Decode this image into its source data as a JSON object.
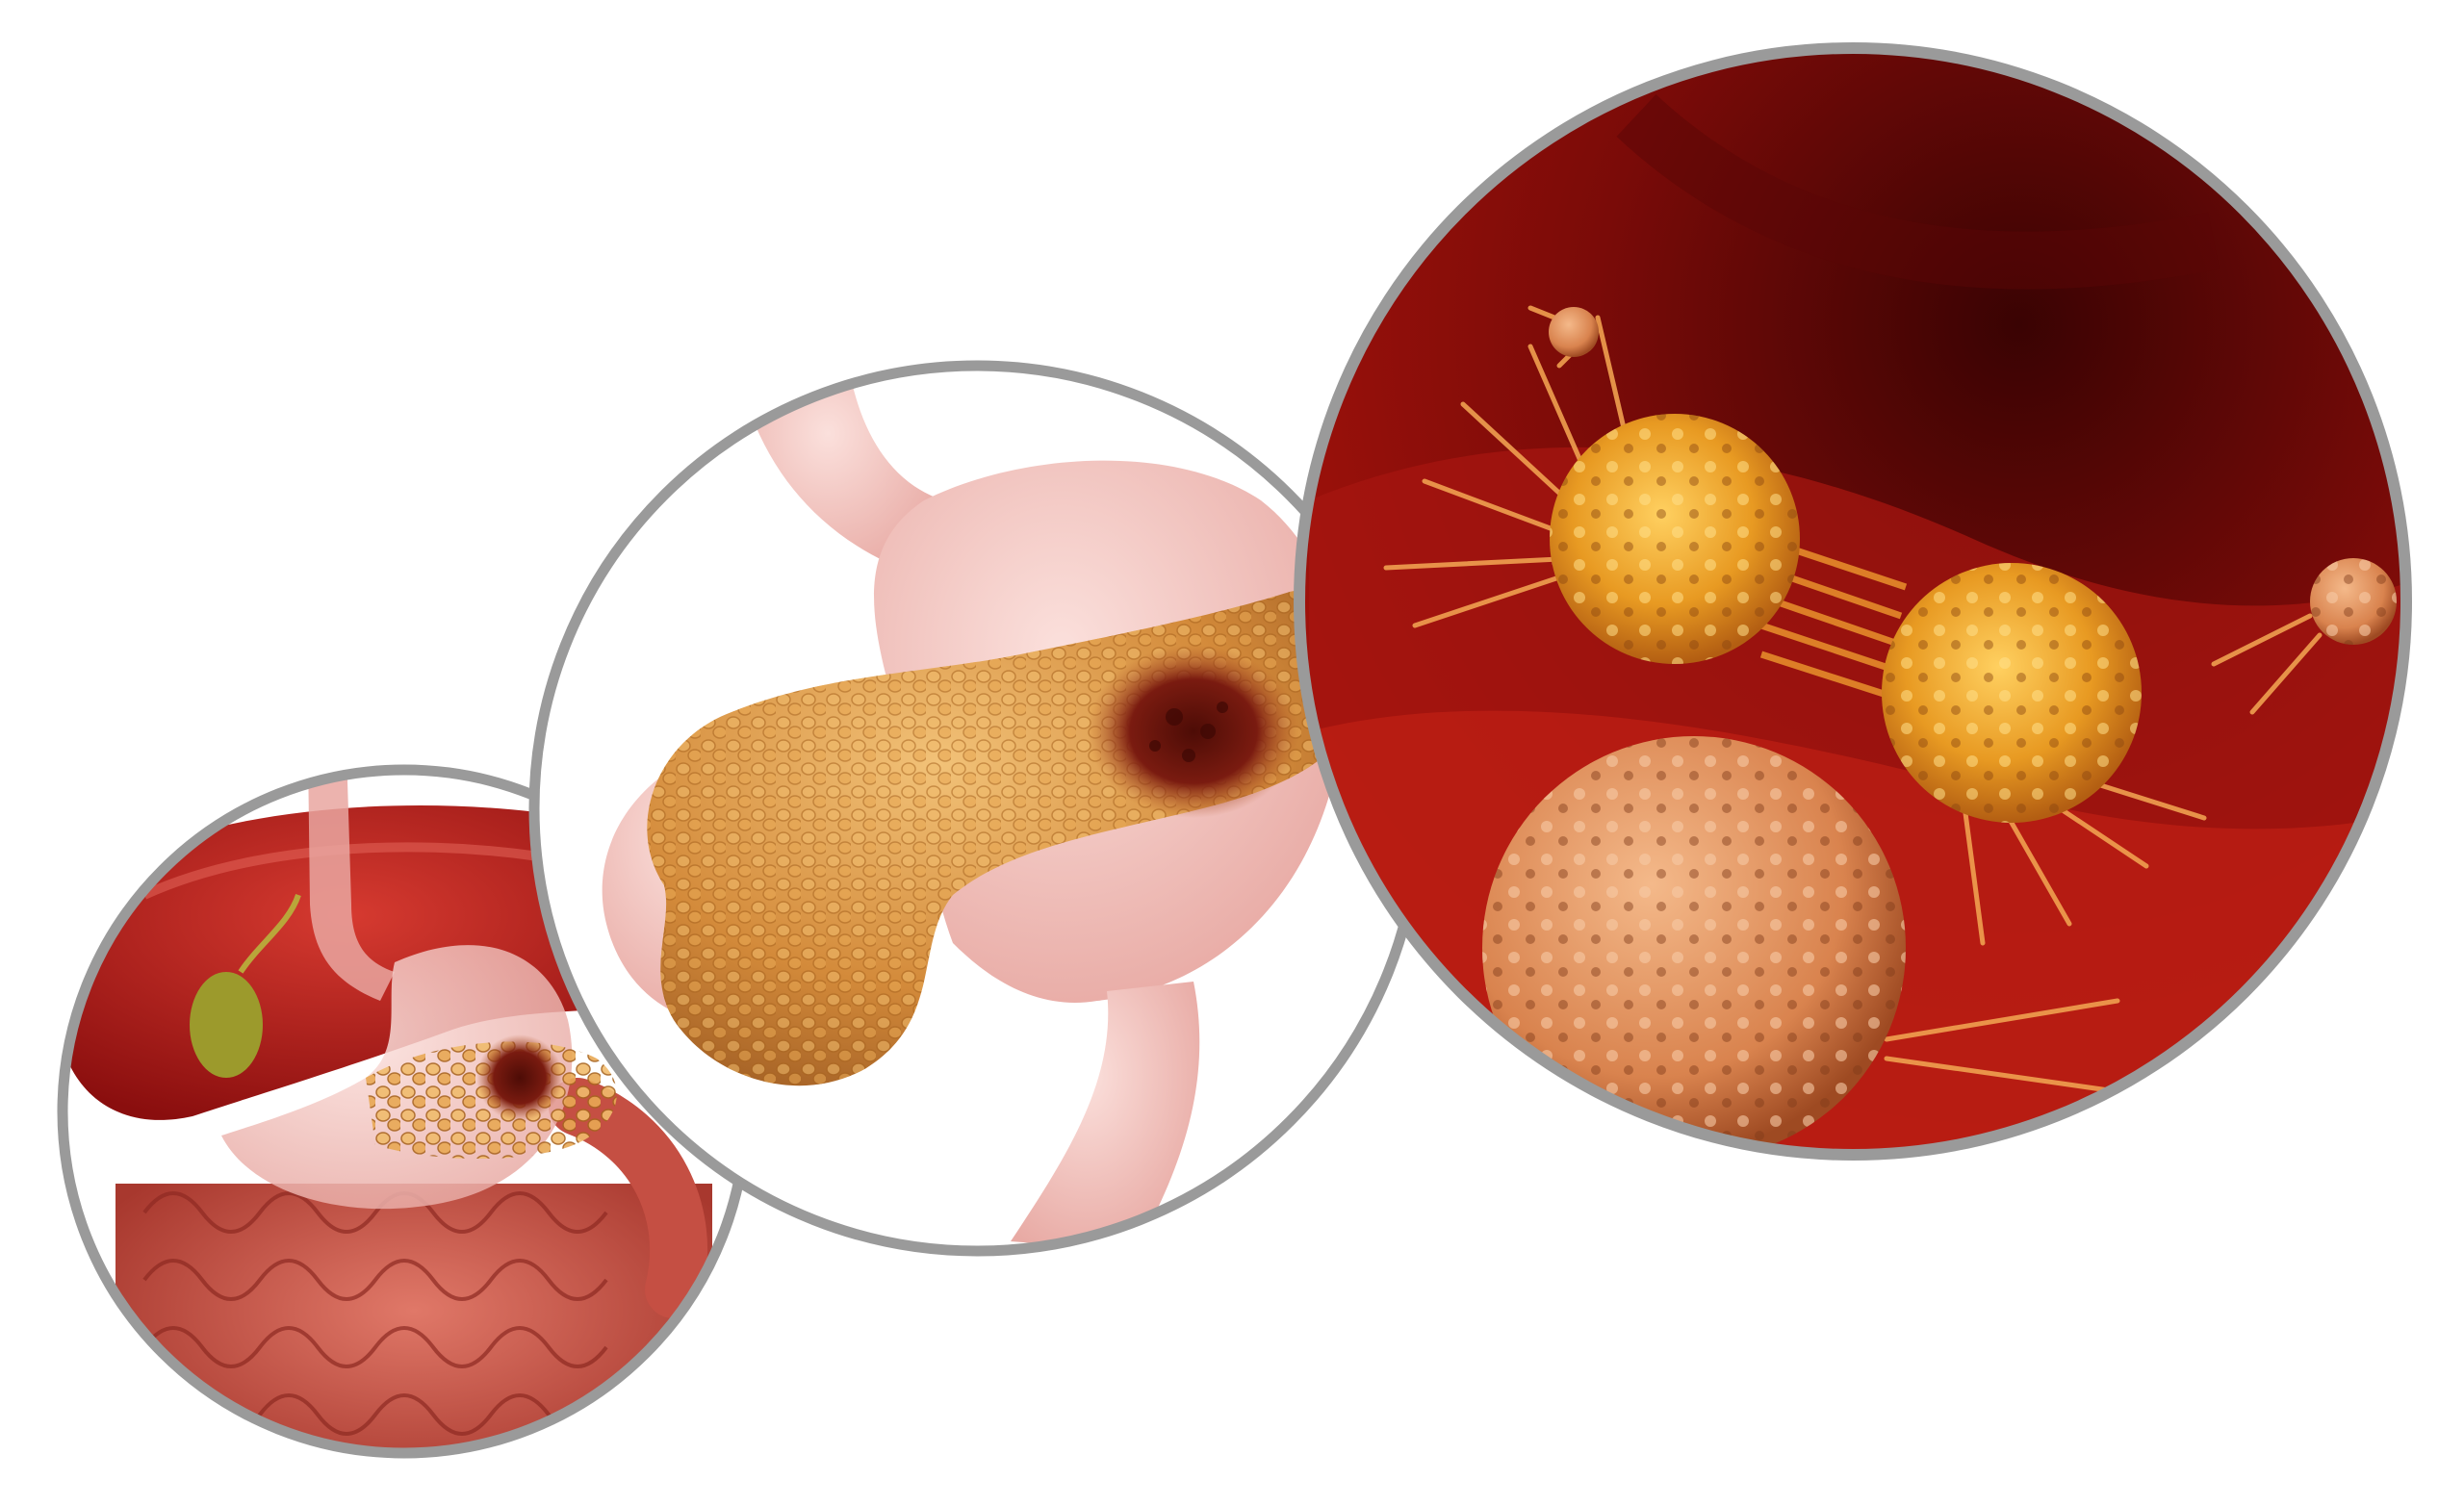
{
  "illustration": {
    "panels": [
      {
        "subject": "digestive-system",
        "icon": "digestive-system-icon"
      },
      {
        "subject": "stomach-and-pancreas",
        "icon": "pancreas-icon"
      },
      {
        "subject": "cancer-cells",
        "icon": "cancer-cell-icon"
      }
    ]
  },
  "colors": {
    "background": "#ffffff",
    "frame_border": "#9a9a9a",
    "liver": "#b01818",
    "stomach": "#f1c4c0",
    "pancreas": "#d7923f",
    "tumor": "#7a1b10",
    "intestine": "#c9574a",
    "tissue_background": "#8c0c08",
    "cancer_cell": "#f0a020"
  }
}
